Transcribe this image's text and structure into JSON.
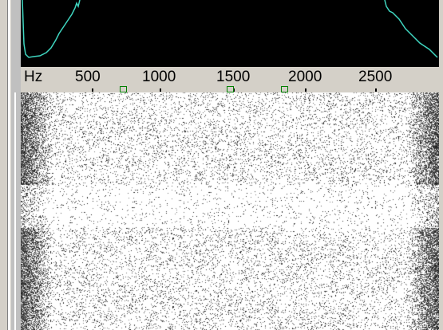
{
  "frequency_scale": {
    "unit_label": "Hz",
    "ticks": [
      {
        "label": "500",
        "value": 500
      },
      {
        "label": "1000",
        "value": 1000
      },
      {
        "label": "1500",
        "value": 1500
      },
      {
        "label": "2000",
        "value": 2000
      },
      {
        "label": "2500",
        "value": 2500
      }
    ],
    "markers": [
      {
        "value": 710
      },
      {
        "value": 1500
      },
      {
        "value": 1850
      }
    ]
  },
  "colors": {
    "spectrum_trace": "#3fd6c0",
    "spectrum_background": "#000000",
    "marker": "#008000",
    "waterfall_dots": "#111111"
  }
}
